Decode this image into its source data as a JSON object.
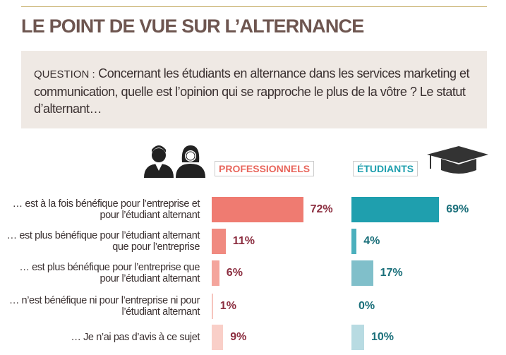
{
  "chart_data": {
    "type": "bar",
    "title": "LE POINT DE VUE SUR L’ALTERNANCE",
    "question_prefix": "QUESTION :",
    "question": "Concernant les étudiants en alternance dans les services marketing et communication, quelle est l’opinion qui se rapproche le plus de la vôtre ? Le statut d’alternant…",
    "categories": [
      "… est à la fois bénéfique pour l’entreprise et pour l’étudiant alternant",
      "… est plus bénéfique pour l’étudiant alternant que pour l’entreprise",
      "… est plus bénéfique pour l’entreprise que pour l’étudiant alternant",
      "… n’est bénéfique ni pour l’entreprise ni pour l’étudiant alternant",
      "… Je n’ai pas d’avis à ce sujet"
    ],
    "series": [
      {
        "name": "PROFESSIONNELS",
        "color": "#e8665c",
        "label_color": "#8b2d3f",
        "colors": [
          "#ef7b71",
          "#f08a80",
          "#f4a59c",
          "#f6c5be",
          "#f9cfc8"
        ],
        "values": [
          72,
          11,
          6,
          1,
          9
        ],
        "value_labels": [
          "72%",
          "11%",
          "6%",
          "1%",
          "9%"
        ]
      },
      {
        "name": "ÉTUDIANTS",
        "color": "#1f9fae",
        "label_color": "#1a6f7a",
        "colors": [
          "#1f9fae",
          "#4bb0bd",
          "#80bfca",
          "#a9d3db",
          "#b8dbe2"
        ],
        "values": [
          69,
          4,
          17,
          0,
          10
        ],
        "value_labels": [
          "69%",
          "4%",
          "17%",
          "0%",
          "10%"
        ]
      }
    ]
  }
}
